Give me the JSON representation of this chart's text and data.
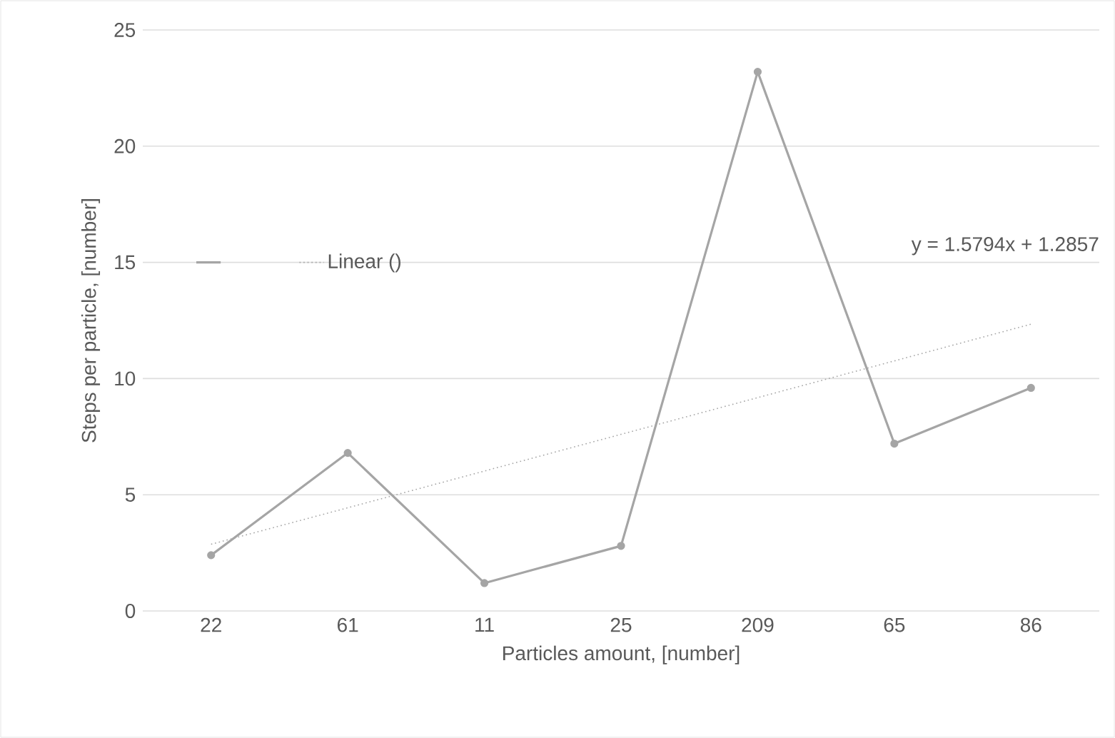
{
  "chart_data": {
    "type": "line",
    "xlabel": "Particles  amount, [number]",
    "ylabel": "Steps per particle, [number]",
    "categories": [
      "22",
      "61",
      "11",
      "25",
      "209",
      "65",
      "86"
    ],
    "series": [
      {
        "color": "#a5a5a5",
        "values": [
          2.4,
          6.8,
          1.2,
          2.8,
          23.2,
          7.2,
          9.6
        ],
        "marker": "circle",
        "line_style": "solid"
      },
      {
        "name": "Linear ()",
        "type": "line",
        "color": "#a5a5a5",
        "values": [
          2.87,
          4.44,
          6.02,
          7.6,
          9.18,
          10.76,
          12.34
        ],
        "marker": "none",
        "line_style": "dotted"
      }
    ],
    "ylim": [
      0,
      25
    ],
    "yticks": [
      0,
      5,
      10,
      15,
      20,
      25
    ],
    "grid": "y",
    "legend": "left",
    "annotations": [
      "y = 1.5794x + 1.2857"
    ]
  }
}
